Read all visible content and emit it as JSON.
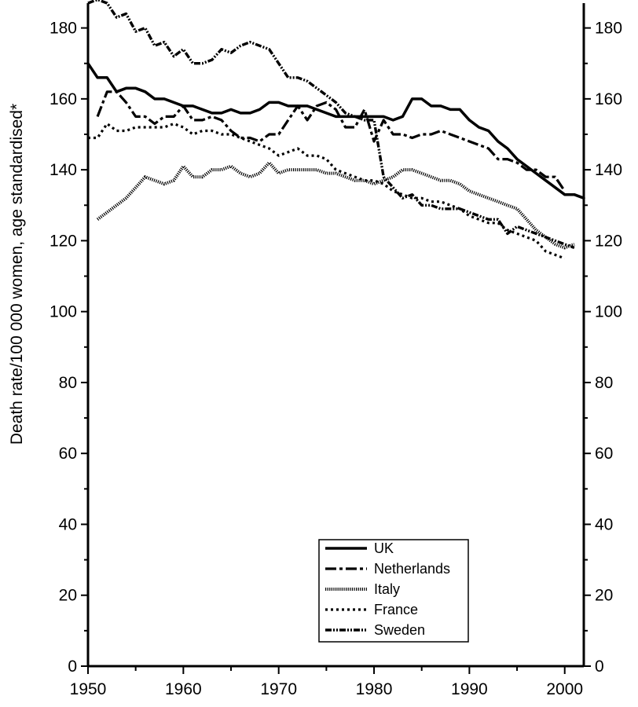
{
  "chart_data": {
    "type": "line",
    "title": "",
    "xlabel": "",
    "ylabel": "Death rate/100 000 women, age standardised*",
    "xlim": [
      1950,
      2002
    ],
    "ylim": [
      0,
      187
    ],
    "x_ticks": [
      1950,
      1960,
      1970,
      1980,
      1990,
      2000
    ],
    "x_tick_labels": [
      "1950",
      "1960",
      "1970",
      "1980",
      "1990",
      "2000"
    ],
    "y_ticks": [
      0,
      20,
      40,
      60,
      80,
      100,
      120,
      140,
      160,
      180
    ],
    "y_tick_labels": [
      "0",
      "20",
      "40",
      "60",
      "80",
      "100",
      "120",
      "140",
      "160",
      "180"
    ],
    "grid": false,
    "legend_position": "bottom-center",
    "series": [
      {
        "name": "UK",
        "style": "solid",
        "x": [
          1950,
          1951,
          1952,
          1953,
          1954,
          1955,
          1956,
          1957,
          1958,
          1959,
          1960,
          1961,
          1962,
          1963,
          1964,
          1965,
          1966,
          1967,
          1968,
          1969,
          1970,
          1971,
          1972,
          1973,
          1974,
          1975,
          1976,
          1977,
          1978,
          1979,
          1980,
          1981,
          1982,
          1983,
          1984,
          1985,
          1986,
          1987,
          1988,
          1989,
          1990,
          1991,
          1992,
          1993,
          1994,
          1995,
          1996,
          1997,
          1998,
          1999,
          2000,
          2001,
          2002
        ],
        "values": [
          170,
          166,
          166,
          162,
          163,
          163,
          162,
          160,
          160,
          159,
          158,
          158,
          157,
          156,
          156,
          157,
          156,
          156,
          157,
          159,
          159,
          158,
          158,
          158,
          157,
          156,
          155,
          155,
          155,
          155,
          155,
          155,
          154,
          155,
          160,
          160,
          158,
          158,
          157,
          157,
          154,
          152,
          151,
          148,
          146,
          143,
          141,
          139,
          137,
          135,
          133,
          133,
          132
        ]
      },
      {
        "name": "Netherlands",
        "style": "dash-dot",
        "x": [
          1951,
          1952,
          1953,
          1954,
          1955,
          1956,
          1957,
          1958,
          1959,
          1960,
          1961,
          1962,
          1963,
          1964,
          1965,
          1966,
          1967,
          1968,
          1969,
          1970,
          1971,
          1972,
          1973,
          1974,
          1975,
          1976,
          1977,
          1978,
          1979,
          1980,
          1981,
          1982,
          1983,
          1984,
          1985,
          1986,
          1987,
          1988,
          1989,
          1990,
          1991,
          1992,
          1993,
          1994,
          1995,
          1996,
          1997,
          1998,
          1999,
          2000
        ],
        "values": [
          155,
          162,
          162,
          159,
          155,
          155,
          153,
          155,
          155,
          158,
          154,
          154,
          155,
          154,
          151,
          149,
          149,
          148,
          150,
          150,
          154,
          158,
          154,
          158,
          159,
          157,
          152,
          152,
          157,
          148,
          154,
          150,
          150,
          149,
          150,
          150,
          151,
          150,
          149,
          148,
          147,
          146,
          143,
          143,
          142,
          140,
          140,
          138,
          138,
          134
        ]
      },
      {
        "name": "Italy",
        "style": "fine-dot",
        "x": [
          1951,
          1952,
          1953,
          1954,
          1955,
          1956,
          1957,
          1958,
          1959,
          1960,
          1961,
          1962,
          1963,
          1964,
          1965,
          1966,
          1967,
          1968,
          1969,
          1970,
          1971,
          1972,
          1973,
          1974,
          1975,
          1976,
          1977,
          1978,
          1979,
          1980,
          1981,
          1982,
          1983,
          1984,
          1985,
          1986,
          1987,
          1988,
          1989,
          1990,
          1991,
          1992,
          1993,
          1994,
          1995,
          1996,
          1997,
          1998,
          1999,
          2000,
          2001
        ],
        "values": [
          126,
          128,
          130,
          132,
          135,
          138,
          137,
          136,
          137,
          141,
          138,
          138,
          140,
          140,
          141,
          139,
          138,
          139,
          142,
          139,
          140,
          140,
          140,
          140,
          139,
          139,
          138,
          137,
          137,
          136,
          137,
          138,
          140,
          140,
          139,
          138,
          137,
          137,
          136,
          134,
          133,
          132,
          131,
          130,
          129,
          126,
          123,
          121,
          119,
          118,
          119
        ]
      },
      {
        "name": "France",
        "style": "dotted",
        "x": [
          1950,
          1951,
          1952,
          1953,
          1954,
          1955,
          1956,
          1957,
          1958,
          1959,
          1960,
          1961,
          1962,
          1963,
          1964,
          1965,
          1966,
          1967,
          1968,
          1969,
          1970,
          1971,
          1972,
          1973,
          1974,
          1975,
          1976,
          1977,
          1978,
          1979,
          1980,
          1981,
          1982,
          1983,
          1984,
          1985,
          1986,
          1987,
          1988,
          1989,
          1990,
          1991,
          1992,
          1993,
          1994,
          1995,
          1996,
          1997,
          1998,
          1999,
          2000
        ],
        "values": [
          149,
          149,
          153,
          151,
          151,
          152,
          152,
          152,
          152,
          153,
          152,
          150,
          151,
          151,
          150,
          150,
          149,
          148,
          147,
          146,
          144,
          145,
          146,
          144,
          144,
          143,
          140,
          139,
          138,
          137,
          137,
          136,
          134,
          133,
          132,
          132,
          131,
          131,
          130,
          129,
          127,
          126,
          125,
          125,
          123,
          122,
          121,
          120,
          117,
          116,
          115
        ]
      },
      {
        "name": "Sweden",
        "style": "dash-dot-dot",
        "x": [
          1950,
          1951,
          1952,
          1953,
          1954,
          1955,
          1956,
          1957,
          1958,
          1959,
          1960,
          1961,
          1962,
          1963,
          1964,
          1965,
          1966,
          1967,
          1968,
          1969,
          1970,
          1971,
          1972,
          1973,
          1974,
          1975,
          1976,
          1977,
          1978,
          1979,
          1980,
          1981,
          1982,
          1983,
          1984,
          1985,
          1986,
          1987,
          1988,
          1989,
          1990,
          1991,
          1992,
          1993,
          1994,
          1995,
          1996,
          1997,
          1998,
          1999,
          2000,
          2001
        ],
        "values": [
          187,
          188,
          187,
          183,
          184,
          179,
          180,
          175,
          176,
          172,
          174,
          170,
          170,
          171,
          174,
          173,
          175,
          176,
          175,
          174,
          170,
          166,
          166,
          165,
          163,
          161,
          159,
          156,
          155,
          154,
          154,
          138,
          135,
          132,
          133,
          130,
          130,
          129,
          129,
          129,
          128,
          127,
          126,
          126,
          122,
          124,
          123,
          122,
          121,
          120,
          119,
          118
        ]
      }
    ]
  }
}
